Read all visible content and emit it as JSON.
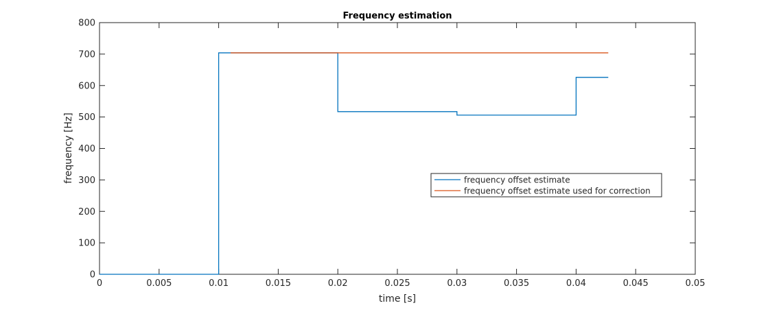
{
  "chart_data": {
    "type": "line",
    "title": "Frequency estimation",
    "xlabel": "time [s]",
    "ylabel": "frequency [Hz]",
    "xlim": [
      0,
      0.05
    ],
    "ylim": [
      0,
      800
    ],
    "xticks": [
      0,
      0.005,
      0.01,
      0.015,
      0.02,
      0.025,
      0.03,
      0.035,
      0.04,
      0.045,
      0.05
    ],
    "xtick_labels": [
      "0",
      "0.005",
      "0.01",
      "0.015",
      "0.02",
      "0.025",
      "0.03",
      "0.035",
      "0.04",
      "0.045",
      "0.05"
    ],
    "yticks": [
      0,
      100,
      200,
      300,
      400,
      500,
      600,
      700,
      800
    ],
    "ytick_labels": [
      "0",
      "100",
      "200",
      "300",
      "400",
      "500",
      "600",
      "700",
      "800"
    ],
    "grid": false,
    "legend_placement": "center-right",
    "series": [
      {
        "name": "frequency offset estimate",
        "color": "#0072bd",
        "step": true,
        "x": [
          0,
          0.01,
          0.02,
          0.03,
          0.04,
          0.0427
        ],
        "y": [
          0,
          704,
          517,
          506,
          626,
          626
        ]
      },
      {
        "name": "frequency offset estimate used for correction",
        "color": "#d95319",
        "step": true,
        "x": [
          0.011,
          0.0427
        ],
        "y": [
          704,
          704
        ]
      }
    ]
  }
}
